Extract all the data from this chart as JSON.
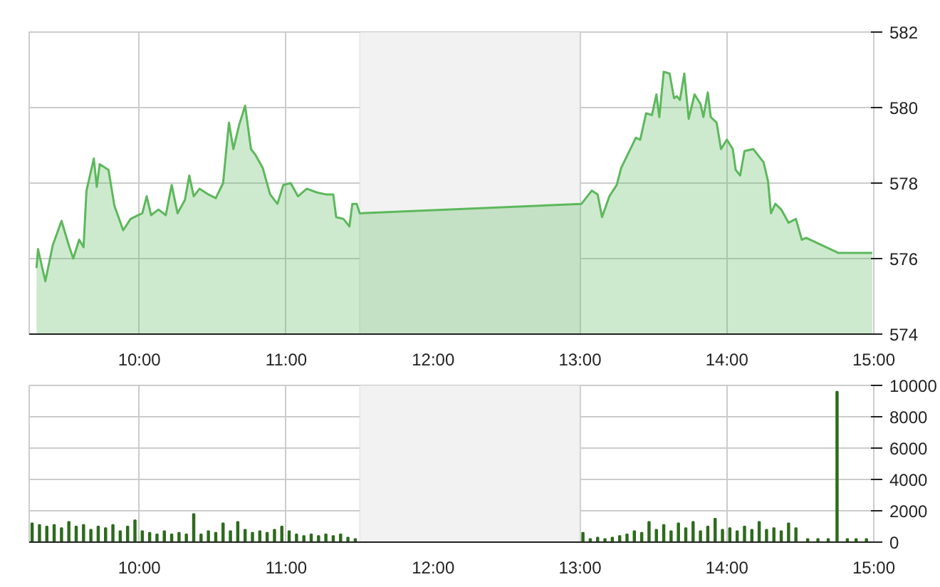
{
  "chart_data": [
    {
      "type": "area",
      "x": [
        9.3,
        9.31,
        9.36,
        9.41,
        9.47,
        9.52,
        9.55,
        9.59,
        9.62,
        9.64,
        9.69,
        9.71,
        9.73,
        9.79,
        9.83,
        9.89,
        9.94,
        9.99,
        10.02,
        10.05,
        10.08,
        10.13,
        10.18,
        10.22,
        10.26,
        10.31,
        10.34,
        10.37,
        10.41,
        10.47,
        10.52,
        10.57,
        10.61,
        10.64,
        10.68,
        10.72,
        10.76,
        10.79,
        10.84,
        10.89,
        10.94,
        10.98,
        11.03,
        11.08,
        11.14,
        11.21,
        11.27,
        11.32,
        11.34,
        11.39,
        11.43,
        11.45,
        11.48,
        11.5,
        13.01,
        13.08,
        13.12,
        13.15,
        13.2,
        13.25,
        13.28,
        13.33,
        13.38,
        13.41,
        13.45,
        13.49,
        13.52,
        13.54,
        13.57,
        13.61,
        13.64,
        13.66,
        13.68,
        13.71,
        13.74,
        13.78,
        13.82,
        13.84,
        13.87,
        13.89,
        13.93,
        13.96,
        14.0,
        14.04,
        14.06,
        14.09,
        14.12,
        14.18,
        14.25,
        14.28,
        14.3,
        14.33,
        14.37,
        14.42,
        14.47,
        14.51,
        14.54,
        14.76,
        14.99
      ],
      "values": [
        575.75,
        576.25,
        575.4,
        576.35,
        577.0,
        576.35,
        576.0,
        576.5,
        576.3,
        577.8,
        578.65,
        577.9,
        578.5,
        578.35,
        577.4,
        576.75,
        577.05,
        577.15,
        577.2,
        577.65,
        577.15,
        577.3,
        577.15,
        577.95,
        577.2,
        577.55,
        578.2,
        577.65,
        577.85,
        577.7,
        577.6,
        578.0,
        579.6,
        578.9,
        579.55,
        580.05,
        578.9,
        578.75,
        578.4,
        577.7,
        577.45,
        577.95,
        578.0,
        577.65,
        577.85,
        577.75,
        577.7,
        577.7,
        577.1,
        577.05,
        576.85,
        577.45,
        577.45,
        577.2,
        577.45,
        577.8,
        577.7,
        577.1,
        577.65,
        577.95,
        578.4,
        578.8,
        579.2,
        579.15,
        579.85,
        579.8,
        580.35,
        579.75,
        580.95,
        580.9,
        580.25,
        580.3,
        580.2,
        580.9,
        579.7,
        580.35,
        580.1,
        579.75,
        580.4,
        579.75,
        579.6,
        578.9,
        579.15,
        578.9,
        578.35,
        578.2,
        578.85,
        578.9,
        578.55,
        578.05,
        577.2,
        577.45,
        577.3,
        576.95,
        577.05,
        576.5,
        576.55,
        576.15,
        576.15
      ],
      "color": "#5cb85c",
      "xlim": [
        9.25,
        15
      ],
      "ylim": [
        574,
        582
      ],
      "yticks": [
        574,
        576,
        578,
        580,
        582
      ],
      "xticks": [
        {
          "value": 10,
          "label": "10:00"
        },
        {
          "value": 11,
          "label": "11:00"
        },
        {
          "value": 12,
          "label": "12:00"
        },
        {
          "value": 13,
          "label": "13:00"
        },
        {
          "value": 14,
          "label": "14:00"
        },
        {
          "value": 15,
          "label": "15:00"
        }
      ],
      "bands": [
        {
          "axis": "x",
          "from": 11.5,
          "to": 13,
          "color": "#f2f2f2"
        }
      ],
      "grid": true
    },
    {
      "type": "bar",
      "x": [
        9.27,
        9.32,
        9.37,
        9.42,
        9.47,
        9.52,
        9.57,
        9.62,
        9.67,
        9.72,
        9.77,
        9.82,
        9.87,
        9.92,
        9.97,
        10.02,
        10.07,
        10.12,
        10.17,
        10.22,
        10.27,
        10.32,
        10.37,
        10.42,
        10.47,
        10.52,
        10.57,
        10.62,
        10.67,
        10.72,
        10.77,
        10.82,
        10.87,
        10.92,
        10.97,
        11.02,
        11.07,
        11.12,
        11.17,
        11.22,
        11.27,
        11.32,
        11.37,
        11.42,
        11.47,
        13.02,
        13.07,
        13.12,
        13.17,
        13.22,
        13.27,
        13.32,
        13.37,
        13.42,
        13.47,
        13.52,
        13.57,
        13.62,
        13.67,
        13.72,
        13.77,
        13.82,
        13.87,
        13.92,
        13.97,
        14.02,
        14.07,
        14.12,
        14.17,
        14.22,
        14.27,
        14.32,
        14.37,
        14.42,
        14.47,
        14.55,
        14.62,
        14.69,
        14.75,
        14.82,
        14.88,
        14.95
      ],
      "values": [
        1200,
        1100,
        1000,
        1100,
        900,
        1300,
        1000,
        1100,
        800,
        1000,
        900,
        1100,
        700,
        1000,
        1400,
        700,
        600,
        500,
        700,
        500,
        600,
        500,
        1800,
        500,
        700,
        600,
        1200,
        700,
        1300,
        800,
        600,
        700,
        600,
        800,
        1000,
        700,
        500,
        400,
        500,
        400,
        500,
        400,
        500,
        300,
        200,
        600,
        200,
        300,
        200,
        300,
        400,
        500,
        700,
        600,
        1300,
        800,
        1100,
        700,
        1200,
        900,
        1300,
        700,
        1000,
        1500,
        800,
        900,
        700,
        1000,
        800,
        1300,
        800,
        900,
        700,
        1200,
        900,
        200,
        200,
        200,
        9600,
        200,
        200,
        200
      ],
      "color": "#2e6b1e",
      "xlim": [
        9.25,
        15
      ],
      "ylim": [
        0,
        10000
      ],
      "yticks": [
        0,
        2000,
        4000,
        6000,
        8000,
        10000
      ],
      "xticks": [
        {
          "value": 10,
          "label": "10:00"
        },
        {
          "value": 11,
          "label": "11:00"
        },
        {
          "value": 12,
          "label": "12:00"
        },
        {
          "value": 13,
          "label": "13:00"
        },
        {
          "value": 14,
          "label": "14:00"
        },
        {
          "value": 15,
          "label": "15:00"
        }
      ],
      "bands": [
        {
          "axis": "x",
          "from": 11.5,
          "to": 13,
          "color": "#f2f2f2"
        }
      ],
      "grid": true
    }
  ]
}
